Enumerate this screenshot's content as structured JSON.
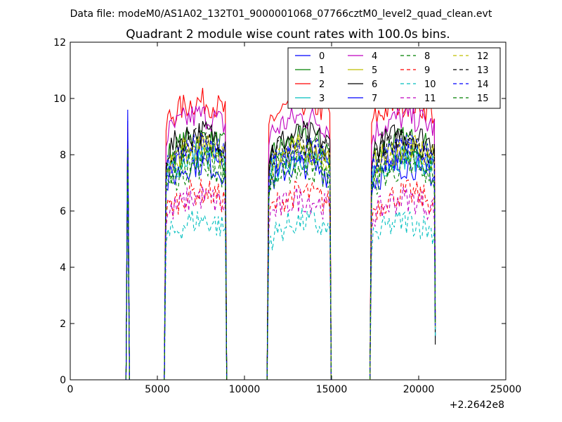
{
  "header": {
    "data_file": "Data file: modeM0/AS1A02_132T01_9000001068_07766cztM0_level2_quad_clean.evt"
  },
  "chart_data": {
    "type": "line",
    "title": "Quadrant 2 module wise count rates with 100.0s bins.",
    "xlabel": "",
    "ylabel": "",
    "x_offset_label": "+2.2642e8",
    "xlim": [
      0,
      25000
    ],
    "ylim": [
      0,
      12
    ],
    "x_ticks": [
      0,
      5000,
      10000,
      15000,
      20000,
      25000
    ],
    "y_ticks": [
      0,
      2,
      4,
      6,
      8,
      10,
      12
    ],
    "grid": false,
    "legend_position": "top-right",
    "segments": [
      {
        "x": [
          3300,
          3400
        ],
        "shape": "spike"
      },
      {
        "x": [
          5500,
          8900
        ]
      },
      {
        "x": [
          11400,
          14900
        ]
      },
      {
        "x": [
          17300,
          20900
        ]
      }
    ],
    "series": [
      {
        "name": "0",
        "color": "#0000ff",
        "dashed": false,
        "level": 7.4,
        "spike": 9.6,
        "end": 7.6
      },
      {
        "name": "1",
        "color": "#008000",
        "dashed": false,
        "level": 7.9,
        "spike": 8.9,
        "end": 8.0
      },
      {
        "name": "2",
        "color": "#ff0000",
        "dashed": false,
        "level": 9.2,
        "spike": 9.0,
        "end": 9.4
      },
      {
        "name": "3",
        "color": "#00bfbf",
        "dashed": false,
        "level": 7.3,
        "spike": 8.4,
        "end": 7.5
      },
      {
        "name": "4",
        "color": "#bf00bf",
        "dashed": false,
        "level": 8.7,
        "spike": 8.8,
        "end": 8.9
      },
      {
        "name": "5",
        "color": "#bfbf00",
        "dashed": false,
        "level": 7.6,
        "spike": 8.6,
        "end": 7.8
      },
      {
        "name": "6",
        "color": "#000000",
        "dashed": false,
        "level": 8.1,
        "spike": 8.8,
        "end": 8.3
      },
      {
        "name": "7",
        "color": "#0000ff",
        "dashed": false,
        "level": 7.0,
        "spike": 9.2,
        "end": 7.4
      },
      {
        "name": "8",
        "color": "#008000",
        "dashed": true,
        "level": 6.9,
        "spike": 8.0,
        "end": 7.1
      },
      {
        "name": "9",
        "color": "#ff0000",
        "dashed": true,
        "level": 6.0,
        "spike": 7.4,
        "end": 6.3
      },
      {
        "name": "10",
        "color": "#00bfbf",
        "dashed": true,
        "level": 5.0,
        "spike": 6.6,
        "end": 5.3
      },
      {
        "name": "11",
        "color": "#bf00bf",
        "dashed": true,
        "level": 5.8,
        "spike": 7.2,
        "end": 6.1
      },
      {
        "name": "12",
        "color": "#bfbf00",
        "dashed": true,
        "level": 7.5,
        "spike": 8.3,
        "end": 7.7
      },
      {
        "name": "13",
        "color": "#000000",
        "dashed": true,
        "level": 7.8,
        "spike": 8.5,
        "end": 8.0
      },
      {
        "name": "14",
        "color": "#0000ff",
        "dashed": true,
        "level": 7.6,
        "spike": 8.6,
        "end": 7.8
      },
      {
        "name": "15",
        "color": "#008000",
        "dashed": true,
        "level": 7.2,
        "spike": 8.2,
        "end": 7.4
      }
    ]
  }
}
